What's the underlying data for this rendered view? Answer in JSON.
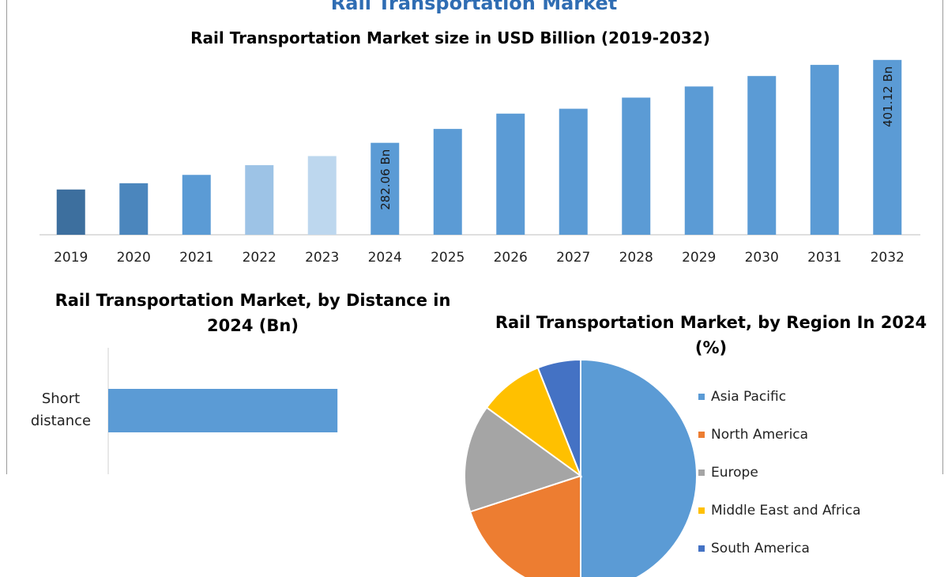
{
  "page": {
    "top_title": "Rail Transportation Market"
  },
  "chart_data": [
    {
      "type": "bar",
      "title": "Rail Transportation Market size in USD Billion (2019-2032)",
      "xlabel": "",
      "ylabel": "",
      "categories": [
        "2019",
        "2020",
        "2021",
        "2022",
        "2023",
        "2024",
        "2025",
        "2026",
        "2027",
        "2028",
        "2029",
        "2030",
        "2031",
        "2032"
      ],
      "values": [
        215,
        224,
        236,
        250,
        263,
        282.06,
        302,
        324,
        331,
        347,
        363,
        378,
        394,
        401.12
      ],
      "colors": [
        "#3d6f9e",
        "#4b86bd",
        "#5b9bd5",
        "#9dc3e6",
        "#bdd7ee",
        "#5b9bd5",
        "#5b9bd5",
        "#5b9bd5",
        "#5b9bd5",
        "#5b9bd5",
        "#5b9bd5",
        "#5b9bd5",
        "#5b9bd5",
        "#5b9bd5"
      ],
      "data_labels": {
        "2024": "282.06 Bn",
        "2032": "401.12 Bn"
      },
      "ylim": [
        150,
        410
      ],
      "grid": false,
      "legend": "none"
    },
    {
      "type": "bar",
      "orientation": "horizontal",
      "title": "Rail Transportation Market, by Distance in 2024 (Bn)",
      "categories": [
        "Short\ndistance"
      ],
      "values": [
        165
      ],
      "xlim": [
        0,
        290
      ],
      "color": "#5b9bd5",
      "legend": "none"
    },
    {
      "type": "pie",
      "title": "Rail Transportation Market, by Region In 2024 (%)",
      "labels": [
        "Asia Pacific",
        "North America",
        "Europe",
        "Middle East and Africa",
        "South America"
      ],
      "values": [
        50,
        20,
        15,
        9,
        6
      ],
      "colors": [
        "#5b9bd5",
        "#ed7d31",
        "#a5a5a5",
        "#ffc000",
        "#4472c4"
      ],
      "legend": "right"
    }
  ]
}
